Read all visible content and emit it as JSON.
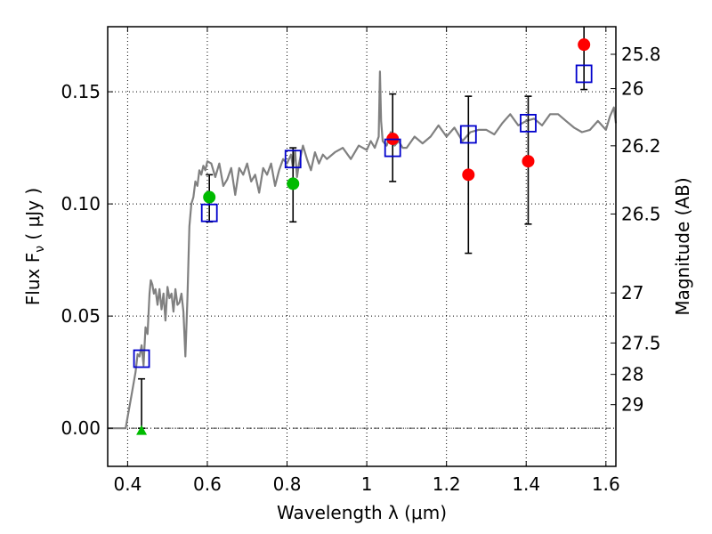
{
  "chart_data": {
    "type": "scatter",
    "xlabel": "Wavelength  λ (μm)",
    "ylabel": "Flux  F",
    "ylabel_sub": "ν",
    "ylabel_unit": "  ( μJy )",
    "y2label": "Magnitude (AB)",
    "xlim": [
      0.35,
      1.625
    ],
    "ylim": [
      -0.017,
      0.179
    ],
    "x_ticks": [
      0.4,
      0.6,
      0.8,
      1.0,
      1.2,
      1.4,
      1.6
    ],
    "x_tick_labels": [
      "0.4",
      "0.6",
      "0.8",
      "1",
      "1.2",
      "1.4",
      "1.6"
    ],
    "y_ticks": [
      0.0,
      0.05,
      0.1,
      0.15
    ],
    "y_tick_labels": [
      "0.00",
      "0.05",
      "0.10",
      "0.15"
    ],
    "y2_ticks": [
      {
        "label": "25.8",
        "flux": 0.1667
      },
      {
        "label": "26",
        "flux": 0.1514
      },
      {
        "label": "26.2",
        "flux": 0.1259
      },
      {
        "label": "26.5",
        "flux": 0.0955
      },
      {
        "label": "27",
        "flux": 0.0603
      },
      {
        "label": "27.5",
        "flux": 0.038
      },
      {
        "label": "28",
        "flux": 0.024
      },
      {
        "label": "29",
        "flux": 0.0105
      }
    ],
    "grid": true,
    "series": [
      {
        "kind": "line",
        "color": "#808080",
        "x": [
          0.35,
          0.395,
          0.4,
          0.41,
          0.42,
          0.425,
          0.43,
          0.435,
          0.44,
          0.445,
          0.45,
          0.455,
          0.458,
          0.462,
          0.466,
          0.47,
          0.475,
          0.48,
          0.485,
          0.49,
          0.495,
          0.5,
          0.505,
          0.51,
          0.515,
          0.52,
          0.525,
          0.53,
          0.535,
          0.54,
          0.545,
          0.55,
          0.555,
          0.56,
          0.565,
          0.57,
          0.575,
          0.58,
          0.585,
          0.59,
          0.595,
          0.6,
          0.61,
          0.62,
          0.63,
          0.64,
          0.65,
          0.66,
          0.67,
          0.68,
          0.69,
          0.7,
          0.71,
          0.72,
          0.73,
          0.74,
          0.75,
          0.76,
          0.77,
          0.78,
          0.79,
          0.8,
          0.81,
          0.815,
          0.82,
          0.825,
          0.83,
          0.84,
          0.85,
          0.86,
          0.87,
          0.88,
          0.89,
          0.9,
          0.92,
          0.94,
          0.96,
          0.98,
          1.0,
          1.01,
          1.02,
          1.03,
          1.033,
          1.036,
          1.04,
          1.05,
          1.06,
          1.07,
          1.08,
          1.09,
          1.1,
          1.12,
          1.14,
          1.16,
          1.18,
          1.2,
          1.22,
          1.24,
          1.26,
          1.28,
          1.3,
          1.32,
          1.34,
          1.36,
          1.38,
          1.4,
          1.42,
          1.44,
          1.46,
          1.48,
          1.5,
          1.52,
          1.54,
          1.56,
          1.58,
          1.6,
          1.61,
          1.62,
          1.625
        ],
        "y": [
          0.0,
          0.0,
          0.005,
          0.015,
          0.025,
          0.033,
          0.032,
          0.037,
          0.028,
          0.045,
          0.042,
          0.06,
          0.066,
          0.064,
          0.06,
          0.062,
          0.055,
          0.062,
          0.053,
          0.06,
          0.048,
          0.063,
          0.058,
          0.06,
          0.052,
          0.062,
          0.055,
          0.056,
          0.06,
          0.052,
          0.032,
          0.058,
          0.09,
          0.1,
          0.103,
          0.11,
          0.108,
          0.115,
          0.113,
          0.117,
          0.115,
          0.119,
          0.118,
          0.112,
          0.118,
          0.108,
          0.111,
          0.116,
          0.104,
          0.116,
          0.113,
          0.118,
          0.11,
          0.113,
          0.105,
          0.116,
          0.113,
          0.118,
          0.108,
          0.115,
          0.12,
          0.118,
          0.122,
          0.116,
          0.124,
          0.112,
          0.118,
          0.126,
          0.12,
          0.115,
          0.123,
          0.118,
          0.122,
          0.12,
          0.123,
          0.125,
          0.12,
          0.126,
          0.124,
          0.128,
          0.125,
          0.13,
          0.159,
          0.137,
          0.128,
          0.126,
          0.132,
          0.126,
          0.128,
          0.125,
          0.125,
          0.13,
          0.127,
          0.13,
          0.135,
          0.13,
          0.134,
          0.128,
          0.132,
          0.133,
          0.133,
          0.131,
          0.136,
          0.14,
          0.135,
          0.137,
          0.138,
          0.135,
          0.14,
          0.14,
          0.137,
          0.134,
          0.132,
          0.133,
          0.137,
          0.133,
          0.139,
          0.143,
          0.136
        ]
      },
      {
        "kind": "errorbar",
        "color": "#000000",
        "points": [
          {
            "x": 0.435,
            "y": 0.0,
            "lo": 0.0,
            "hi": 0.022
          },
          {
            "x": 0.605,
            "y": 0.103,
            "lo": 0.092,
            "hi": 0.113
          },
          {
            "x": 0.815,
            "y": 0.109,
            "lo": 0.092,
            "hi": 0.125
          },
          {
            "x": 1.065,
            "y": 0.129,
            "lo": 0.11,
            "hi": 0.149
          },
          {
            "x": 1.255,
            "y": 0.113,
            "lo": 0.078,
            "hi": 0.148
          },
          {
            "x": 1.405,
            "y": 0.119,
            "lo": 0.091,
            "hi": 0.148
          },
          {
            "x": 1.545,
            "y": 0.171,
            "lo": 0.151,
            "hi": 0.18
          }
        ]
      },
      {
        "kind": "marker",
        "marker": "triangle",
        "color": "#00bb00",
        "points": [
          {
            "x": 0.435,
            "y": -0.001
          }
        ]
      },
      {
        "kind": "marker",
        "marker": "circle",
        "color": "#00bb00",
        "points": [
          {
            "x": 0.605,
            "y": 0.103
          },
          {
            "x": 0.815,
            "y": 0.109
          }
        ]
      },
      {
        "kind": "marker",
        "marker": "circle",
        "color": "#ff0000",
        "points": [
          {
            "x": 1.065,
            "y": 0.129
          },
          {
            "x": 1.255,
            "y": 0.113
          },
          {
            "x": 1.405,
            "y": 0.119
          },
          {
            "x": 1.545,
            "y": 0.171
          }
        ]
      },
      {
        "kind": "marker",
        "marker": "square",
        "color": "#0000cc",
        "points": [
          {
            "x": 0.435,
            "y": 0.031
          },
          {
            "x": 0.605,
            "y": 0.096
          },
          {
            "x": 0.815,
            "y": 0.12
          },
          {
            "x": 1.065,
            "y": 0.125
          },
          {
            "x": 1.255,
            "y": 0.131
          },
          {
            "x": 1.405,
            "y": 0.136
          },
          {
            "x": 1.545,
            "y": 0.158
          }
        ]
      }
    ]
  }
}
